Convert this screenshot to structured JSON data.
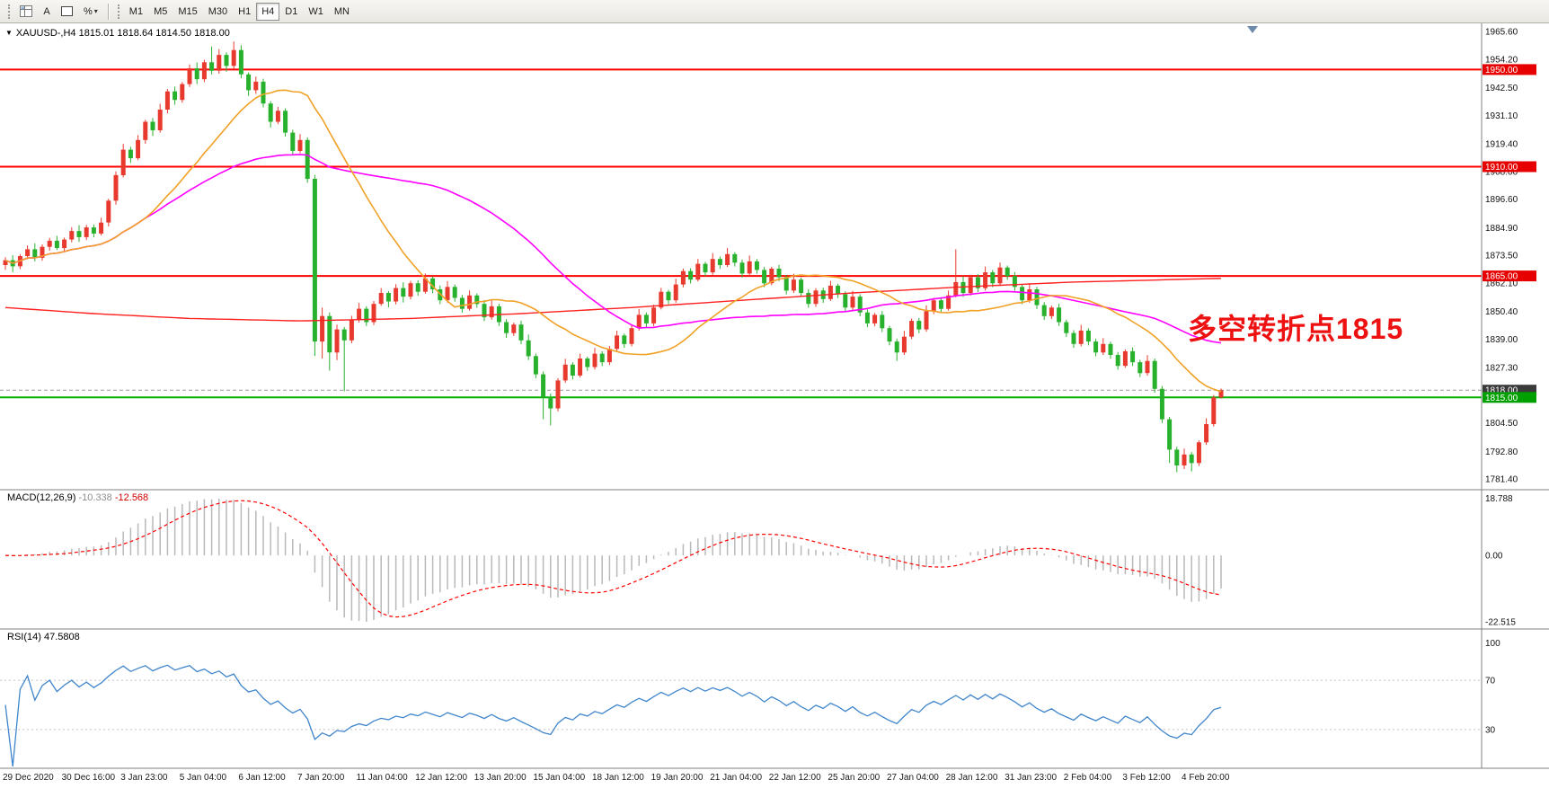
{
  "toolbar": {
    "tools": {
      "text_tool": "A",
      "fibo_tool": "%",
      "caret": "▾"
    },
    "timeframes": [
      "M1",
      "M5",
      "M15",
      "M30",
      "H1",
      "H4",
      "D1",
      "W1",
      "MN"
    ],
    "active_timeframe": "H4"
  },
  "header": {
    "expand_icon": "▼",
    "symbol_text": "XAUUSD-,H4",
    "ohlc_text": "1815.01 1818.64 1814.50 1818.00"
  },
  "chart_data": {
    "type": "candlestick",
    "symbol": "XAUUSD-",
    "timeframe": "H4",
    "up_color": "#e8392e",
    "down_color": "#28b12c",
    "price_range": [
      1777,
      1969
    ],
    "price_axis_ticks": [
      "1965.60",
      "1954.20",
      "1942.50",
      "1931.10",
      "1919.40",
      "1908.00",
      "1896.60",
      "1884.90",
      "1873.50",
      "1862.10",
      "1850.40",
      "1839.00",
      "1827.30",
      "1804.50",
      "1792.80",
      "1781.40"
    ],
    "level_labels": [
      {
        "text": "1950.00",
        "price": 1950.0,
        "bg": "#e60000"
      },
      {
        "text": "1910.00",
        "price": 1910.0,
        "bg": "#e60000"
      },
      {
        "text": "1865.00",
        "price": 1865.0,
        "bg": "#e60000"
      },
      {
        "text": "1818.00",
        "price": 1818.0,
        "bg": "#3a3a3a"
      },
      {
        "text": "1815.00",
        "price": 1815.0,
        "bg": "#00a000"
      }
    ],
    "horizontal_lines": [
      {
        "price": 1950.0,
        "color": "#ff0000",
        "width": 2
      },
      {
        "price": 1910.0,
        "color": "#ff0000",
        "width": 2
      },
      {
        "price": 1865.0,
        "color": "#ff0000",
        "width": 2
      },
      {
        "price": 1815.0,
        "color": "#00b000",
        "width": 2
      }
    ],
    "bid_line": {
      "price": 1818.0,
      "color": "#9a9a9a"
    },
    "annotation": {
      "text": "多空转折点1815",
      "color": "#ee1111"
    },
    "x_labels": [
      "29 Dec 2020",
      "30 Dec 16:00",
      "3 Jan 23:00",
      "5 Jan 04:00",
      "6 Jan 12:00",
      "7 Jan 20:00",
      "11 Jan 04:00",
      "12 Jan 12:00",
      "13 Jan 20:00",
      "15 Jan 04:00",
      "18 Jan 12:00",
      "19 Jan 20:00",
      "21 Jan 04:00",
      "22 Jan 12:00",
      "25 Jan 20:00",
      "27 Jan 04:00",
      "28 Jan 12:00",
      "31 Jan 23:00",
      "2 Feb 04:00",
      "3 Feb 12:00",
      "4 Feb 20:00"
    ],
    "bars_per_label": 8,
    "moving_averages": [
      {
        "name": "ma-fast",
        "period": 20,
        "color": "#f0a126"
      },
      {
        "name": "ma-mid",
        "period": 45,
        "color": "#ff00ff"
      },
      {
        "name": "ma-slow",
        "color": "#ff2020",
        "points": [
          [
            0,
            1852.0
          ],
          [
            12,
            1849.5
          ],
          [
            25,
            1847.5
          ],
          [
            40,
            1846.5
          ],
          [
            55,
            1847.5
          ],
          [
            70,
            1849.5
          ],
          [
            85,
            1852.0
          ],
          [
            100,
            1855.0
          ],
          [
            115,
            1858.0
          ],
          [
            130,
            1860.5
          ],
          [
            145,
            1862.5
          ],
          [
            165,
            1864.0
          ]
        ]
      }
    ],
    "indicators": [
      {
        "type": "macd",
        "label": "MACD(12,26,9)",
        "value_main": "-10.338",
        "value_signal": "-12.568",
        "fast": 12,
        "slow": 26,
        "signal": 9,
        "axis_ticks": [
          "18.788",
          "0.00",
          "-22.515"
        ],
        "histogram_color": "#b9b9b9",
        "signal_color": "#ff0000"
      },
      {
        "type": "rsi",
        "label": "RSI(14)",
        "value": "47.5808",
        "period": 14,
        "levels": [
          70,
          30
        ],
        "axis_ticks": [
          "100",
          "70",
          "30"
        ],
        "line_color": "#3f86cc"
      }
    ],
    "ohlc": [
      [
        1869.5,
        1872.7,
        1867.5,
        1871.5
      ],
      [
        1871.5,
        1873.5,
        1866.6,
        1869.0
      ],
      [
        1869.0,
        1874.0,
        1867.8,
        1873.2
      ],
      [
        1873.2,
        1877.6,
        1871.9,
        1876.0
      ],
      [
        1876.0,
        1878.4,
        1871.0,
        1872.5
      ],
      [
        1872.5,
        1878.0,
        1871.3,
        1877.0
      ],
      [
        1877.0,
        1880.7,
        1875.4,
        1879.5
      ],
      [
        1879.5,
        1881.5,
        1875.7,
        1876.5
      ],
      [
        1876.5,
        1880.8,
        1874.9,
        1880.0
      ],
      [
        1880.0,
        1885.1,
        1878.8,
        1883.5
      ],
      [
        1883.5,
        1885.9,
        1879.0,
        1881.0
      ],
      [
        1881.0,
        1886.0,
        1879.8,
        1885.0
      ],
      [
        1885.0,
        1886.2,
        1880.9,
        1882.5
      ],
      [
        1882.5,
        1889.0,
        1881.7,
        1887.0
      ],
      [
        1887.0,
        1896.8,
        1885.4,
        1896.0
      ],
      [
        1896.0,
        1908.1,
        1894.4,
        1906.5
      ],
      [
        1906.5,
        1919.4,
        1905.5,
        1917.0
      ],
      [
        1917.0,
        1918.2,
        1911.5,
        1913.5
      ],
      [
        1913.5,
        1923.0,
        1912.7,
        1921.0
      ],
      [
        1921.0,
        1929.3,
        1919.4,
        1928.5
      ],
      [
        1928.5,
        1930.1,
        1922.6,
        1925.0
      ],
      [
        1925.0,
        1935.9,
        1924.0,
        1933.5
      ],
      [
        1933.5,
        1942.0,
        1931.9,
        1941.0
      ],
      [
        1941.0,
        1943.0,
        1935.5,
        1937.5
      ],
      [
        1937.5,
        1944.8,
        1936.3,
        1944.0
      ],
      [
        1944.0,
        1952.1,
        1942.8,
        1950.5
      ],
      [
        1950.5,
        1952.9,
        1944.0,
        1946.0
      ],
      [
        1946.0,
        1954.0,
        1944.8,
        1953.0
      ],
      [
        1953.0,
        1959.5,
        1947.9,
        1949.5
      ],
      [
        1949.5,
        1958.4,
        1948.3,
        1956.0
      ],
      [
        1956.0,
        1957.0,
        1949.1,
        1951.5
      ],
      [
        1951.5,
        1961.5,
        1950.3,
        1958.0
      ],
      [
        1958.0,
        1960.0,
        1946.4,
        1948.0
      ],
      [
        1948.0,
        1948.8,
        1939.1,
        1941.5
      ],
      [
        1941.5,
        1947.1,
        1940.0,
        1945.0
      ],
      [
        1945.0,
        1946.2,
        1934.4,
        1936.0
      ],
      [
        1936.0,
        1937.0,
        1926.1,
        1928.5
      ],
      [
        1928.5,
        1934.6,
        1927.5,
        1933.0
      ],
      [
        1933.0,
        1934.0,
        1922.4,
        1924.0
      ],
      [
        1924.0,
        1925.2,
        1914.9,
        1916.5
      ],
      [
        1916.5,
        1923.4,
        1915.5,
        1921.0
      ],
      [
        1921.0,
        1922.0,
        1903.4,
        1905.0
      ],
      [
        1905.0,
        1906.6,
        1832.0,
        1838.0
      ],
      [
        1838.0,
        1852.0,
        1831.0,
        1848.5
      ],
      [
        1848.5,
        1850.0,
        1826.0,
        1833.5
      ],
      [
        1833.5,
        1845.0,
        1830.4,
        1843.0
      ],
      [
        1843.0,
        1844.0,
        1817.5,
        1838.5
      ],
      [
        1838.5,
        1848.6,
        1837.3,
        1847.0
      ],
      [
        1847.0,
        1853.9,
        1845.8,
        1851.5
      ],
      [
        1851.5,
        1852.5,
        1844.4,
        1846.0
      ],
      [
        1846.0,
        1854.7,
        1844.8,
        1853.5
      ],
      [
        1853.5,
        1860.0,
        1852.7,
        1858.0
      ],
      [
        1858.0,
        1858.8,
        1852.1,
        1854.5
      ],
      [
        1854.5,
        1861.6,
        1853.3,
        1860.0
      ],
      [
        1860.0,
        1862.4,
        1854.1,
        1856.5
      ],
      [
        1856.5,
        1863.0,
        1855.3,
        1862.0
      ],
      [
        1862.0,
        1863.2,
        1856.9,
        1858.5
      ],
      [
        1858.5,
        1866.0,
        1857.7,
        1864.0
      ],
      [
        1864.0,
        1864.8,
        1857.9,
        1859.5
      ],
      [
        1859.5,
        1861.1,
        1853.4,
        1855.0
      ],
      [
        1855.0,
        1862.9,
        1854.0,
        1860.5
      ],
      [
        1860.5,
        1861.5,
        1854.4,
        1856.0
      ],
      [
        1856.0,
        1857.2,
        1849.9,
        1851.5
      ],
      [
        1851.5,
        1859.0,
        1850.7,
        1857.0
      ],
      [
        1857.0,
        1857.8,
        1851.9,
        1853.5
      ],
      [
        1853.5,
        1855.1,
        1846.4,
        1848.0
      ],
      [
        1848.0,
        1854.9,
        1847.0,
        1852.5
      ],
      [
        1852.5,
        1853.5,
        1844.4,
        1846.0
      ],
      [
        1846.0,
        1847.2,
        1839.5,
        1841.5
      ],
      [
        1841.5,
        1845.8,
        1840.3,
        1845.0
      ],
      [
        1845.0,
        1846.6,
        1836.9,
        1838.5
      ],
      [
        1838.5,
        1840.9,
        1830.4,
        1832.0
      ],
      [
        1832.0,
        1833.0,
        1822.9,
        1824.5
      ],
      [
        1824.5,
        1825.7,
        1806.0,
        1815.0
      ],
      [
        1815.0,
        1816.6,
        1803.5,
        1810.5
      ],
      [
        1810.5,
        1823.0,
        1809.3,
        1822.0
      ],
      [
        1822.0,
        1830.9,
        1821.0,
        1828.5
      ],
      [
        1828.5,
        1829.5,
        1822.4,
        1824.0
      ],
      [
        1824.0,
        1833.0,
        1823.2,
        1831.0
      ],
      [
        1831.0,
        1831.8,
        1825.9,
        1827.5
      ],
      [
        1827.5,
        1835.4,
        1826.5,
        1833.0
      ],
      [
        1833.0,
        1834.0,
        1827.9,
        1829.5
      ],
      [
        1829.5,
        1836.2,
        1828.3,
        1835.0
      ],
      [
        1835.0,
        1842.5,
        1834.2,
        1840.5
      ],
      [
        1840.5,
        1841.3,
        1835.4,
        1837.0
      ],
      [
        1837.0,
        1845.1,
        1836.0,
        1843.5
      ],
      [
        1843.5,
        1851.4,
        1842.5,
        1849.0
      ],
      [
        1849.0,
        1850.0,
        1843.9,
        1845.5
      ],
      [
        1845.5,
        1853.2,
        1844.3,
        1852.0
      ],
      [
        1852.0,
        1860.1,
        1851.2,
        1858.5
      ],
      [
        1858.5,
        1859.3,
        1853.4,
        1855.0
      ],
      [
        1855.0,
        1863.9,
        1854.0,
        1861.5
      ],
      [
        1861.5,
        1868.0,
        1860.3,
        1867.0
      ],
      [
        1867.0,
        1868.2,
        1861.9,
        1863.5
      ],
      [
        1863.5,
        1872.0,
        1862.7,
        1870.0
      ],
      [
        1870.0,
        1870.8,
        1864.9,
        1866.5
      ],
      [
        1866.5,
        1874.4,
        1865.5,
        1872.0
      ],
      [
        1872.0,
        1873.0,
        1867.9,
        1869.5
      ],
      [
        1869.5,
        1876.5,
        1868.7,
        1874.0
      ],
      [
        1874.0,
        1874.8,
        1868.9,
        1870.5
      ],
      [
        1870.5,
        1871.7,
        1864.4,
        1866.0
      ],
      [
        1866.0,
        1873.4,
        1865.0,
        1871.0
      ],
      [
        1871.0,
        1872.0,
        1865.9,
        1867.5
      ],
      [
        1867.5,
        1868.7,
        1860.4,
        1862.0
      ],
      [
        1862.0,
        1868.8,
        1861.2,
        1868.0
      ],
      [
        1868.0,
        1869.6,
        1862.9,
        1864.5
      ],
      [
        1864.5,
        1865.5,
        1857.4,
        1859.0
      ],
      [
        1859.0,
        1865.9,
        1858.0,
        1863.5
      ],
      [
        1863.5,
        1864.3,
        1856.4,
        1858.0
      ],
      [
        1858.0,
        1859.6,
        1851.9,
        1853.5
      ],
      [
        1853.5,
        1860.0,
        1852.3,
        1859.0
      ],
      [
        1859.0,
        1860.2,
        1853.9,
        1855.5
      ],
      [
        1855.5,
        1863.0,
        1854.7,
        1861.0
      ],
      [
        1861.0,
        1861.8,
        1855.9,
        1857.5
      ],
      [
        1857.5,
        1858.7,
        1850.4,
        1852.0
      ],
      [
        1852.0,
        1858.9,
        1851.0,
        1856.5
      ],
      [
        1856.5,
        1857.5,
        1848.4,
        1850.0
      ],
      [
        1850.0,
        1851.2,
        1843.9,
        1845.5
      ],
      [
        1845.5,
        1849.8,
        1844.3,
        1849.0
      ],
      [
        1849.0,
        1850.6,
        1841.9,
        1843.5
      ],
      [
        1843.5,
        1844.5,
        1836.4,
        1838.0
      ],
      [
        1838.0,
        1839.2,
        1830.0,
        1833.5
      ],
      [
        1833.5,
        1842.4,
        1832.5,
        1840.0
      ],
      [
        1840.0,
        1847.5,
        1839.0,
        1846.5
      ],
      [
        1846.5,
        1847.7,
        1841.4,
        1843.0
      ],
      [
        1843.0,
        1852.9,
        1842.0,
        1850.5
      ],
      [
        1850.5,
        1856.0,
        1849.3,
        1855.0
      ],
      [
        1855.0,
        1856.2,
        1849.9,
        1851.5
      ],
      [
        1851.5,
        1859.0,
        1850.7,
        1857.0
      ],
      [
        1857.0,
        1876.0,
        1856.2,
        1862.5
      ],
      [
        1862.5,
        1864.9,
        1856.4,
        1858.0
      ],
      [
        1858.0,
        1865.5,
        1857.0,
        1864.5
      ],
      [
        1864.5,
        1865.7,
        1858.4,
        1860.0
      ],
      [
        1860.0,
        1868.9,
        1859.0,
        1866.5
      ],
      [
        1866.5,
        1867.5,
        1860.4,
        1862.0
      ],
      [
        1862.0,
        1870.5,
        1861.2,
        1868.5
      ],
      [
        1868.5,
        1869.3,
        1863.4,
        1865.0
      ],
      [
        1865.0,
        1866.6,
        1858.9,
        1860.5
      ],
      [
        1860.5,
        1861.5,
        1853.4,
        1855.0
      ],
      [
        1855.0,
        1861.9,
        1854.0,
        1859.5
      ],
      [
        1859.5,
        1860.5,
        1851.4,
        1853.0
      ],
      [
        1853.0,
        1854.2,
        1846.9,
        1848.5
      ],
      [
        1848.5,
        1852.8,
        1847.3,
        1852.0
      ],
      [
        1852.0,
        1853.6,
        1844.4,
        1846.0
      ],
      [
        1846.0,
        1847.0,
        1839.9,
        1841.5
      ],
      [
        1841.5,
        1842.7,
        1835.4,
        1837.0
      ],
      [
        1837.0,
        1844.9,
        1836.0,
        1842.5
      ],
      [
        1842.5,
        1843.5,
        1836.4,
        1838.0
      ],
      [
        1838.0,
        1839.2,
        1831.9,
        1833.5
      ],
      [
        1833.5,
        1839.4,
        1832.5,
        1837.0
      ],
      [
        1837.0,
        1838.0,
        1830.9,
        1832.5
      ],
      [
        1832.5,
        1833.7,
        1826.4,
        1828.0
      ],
      [
        1828.0,
        1834.8,
        1827.2,
        1834.0
      ],
      [
        1834.0,
        1835.6,
        1827.9,
        1829.5
      ],
      [
        1829.5,
        1830.5,
        1823.4,
        1825.0
      ],
      [
        1825.0,
        1832.4,
        1824.0,
        1830.0
      ],
      [
        1830.0,
        1831.0,
        1816.9,
        1818.5
      ],
      [
        1818.5,
        1819.7,
        1804.4,
        1806.0
      ],
      [
        1806.0,
        1807.0,
        1788.0,
        1793.5
      ],
      [
        1793.5,
        1794.7,
        1784.2,
        1787.0
      ],
      [
        1787.0,
        1793.9,
        1785.5,
        1791.5
      ],
      [
        1791.5,
        1792.5,
        1784.5,
        1788.0
      ],
      [
        1788.0,
        1797.3,
        1786.8,
        1796.5
      ],
      [
        1796.5,
        1806.4,
        1795.5,
        1804.0
      ],
      [
        1804.0,
        1816.0,
        1803.0,
        1815.0
      ],
      [
        1815.01,
        1818.64,
        1814.5,
        1818.0
      ]
    ]
  }
}
